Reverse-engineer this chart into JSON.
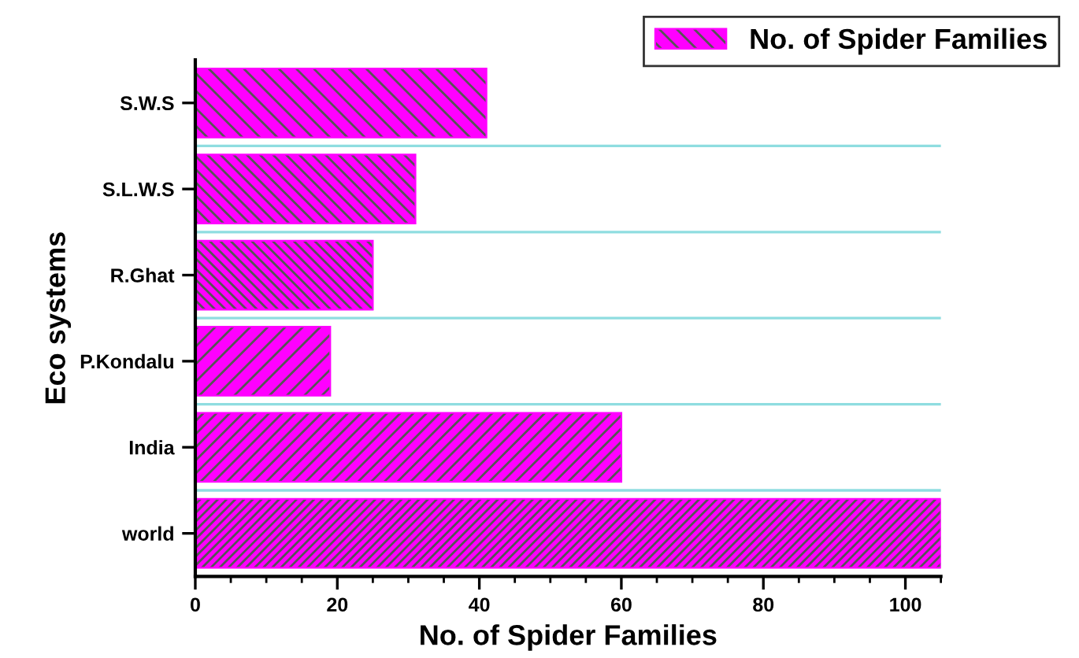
{
  "chart_data": {
    "type": "bar",
    "orientation": "horizontal",
    "xlabel": "No. of Spider Families",
    "ylabel": "Eco systems",
    "categories": [
      "S.W.S",
      "S.L.W.S",
      "R.Ghat",
      "P.Kondalu",
      "India",
      "world"
    ],
    "series": [
      {
        "name": "No. of Spider Families",
        "color": "#ff00ff",
        "values": [
          41,
          31,
          25,
          19,
          60,
          105
        ]
      }
    ],
    "xlim": [
      0,
      105
    ],
    "xticks": [
      0,
      20,
      40,
      60,
      80,
      100
    ],
    "grid": "y",
    "legend": "top right"
  }
}
